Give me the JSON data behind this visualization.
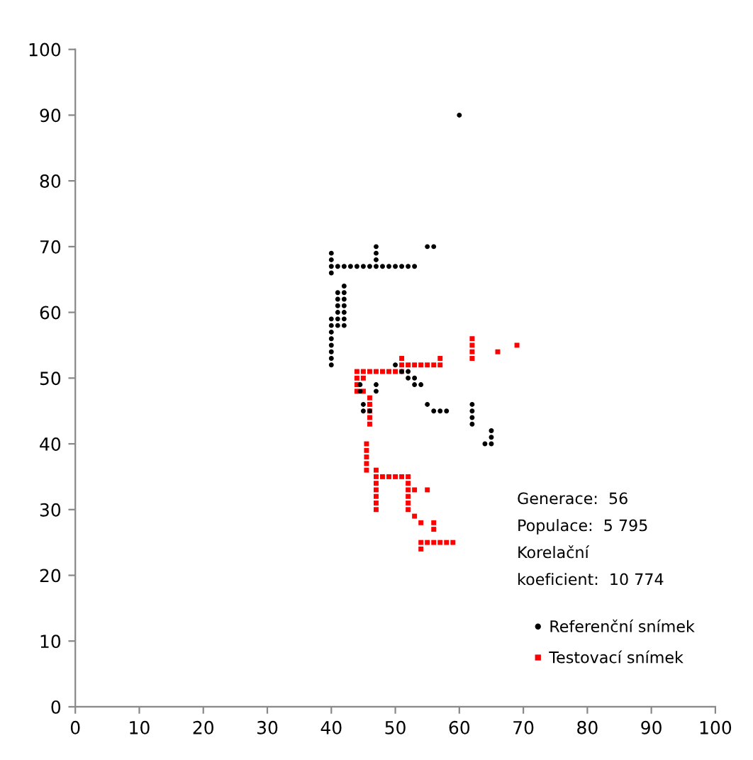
{
  "chart_data": {
    "type": "scatter",
    "xlim": [
      0,
      100
    ],
    "ylim": [
      0,
      100
    ],
    "xticks": [
      0,
      10,
      20,
      30,
      40,
      50,
      60,
      70,
      80,
      90,
      100
    ],
    "yticks": [
      0,
      10,
      20,
      30,
      40,
      50,
      60,
      70,
      80,
      90,
      100
    ],
    "grid": false,
    "legend": "bottom right",
    "annotations": [
      "Generace:  56",
      "Populace:  5 795",
      "Korelační",
      "koeficient:  10 774"
    ],
    "series": [
      {
        "name": "Referenční snímek",
        "color": "#000000",
        "marker": "circle",
        "x": [
          60,
          40,
          40,
          40,
          40,
          40,
          40,
          40,
          40,
          40,
          40,
          40,
          40,
          41,
          42,
          43,
          44,
          45,
          46,
          47,
          48,
          49,
          50,
          51,
          52,
          53,
          47,
          47,
          47,
          55,
          56,
          41,
          41,
          41,
          41,
          41,
          41,
          42,
          42,
          42,
          42,
          42,
          42,
          42,
          50,
          51,
          52,
          52,
          53,
          53,
          54,
          44.5,
          44.5,
          47,
          47,
          45,
          45,
          46,
          55,
          56,
          57,
          58,
          62,
          62,
          62,
          62,
          65,
          65,
          65,
          64
        ],
        "values": [
          90,
          52,
          53,
          54,
          55,
          56,
          57,
          58,
          59,
          66,
          67,
          68,
          69,
          67,
          67,
          67,
          67,
          67,
          67,
          67,
          67,
          67,
          67,
          67,
          67,
          67,
          68,
          69,
          70,
          70,
          70,
          58,
          59,
          60,
          61,
          62,
          63,
          58,
          59,
          60,
          61,
          62,
          63,
          64,
          52,
          51,
          51,
          50,
          50,
          49,
          49,
          49,
          48,
          49,
          48,
          46,
          45,
          45,
          46,
          45,
          45,
          45,
          43,
          44,
          45,
          46,
          42,
          41,
          40,
          40
        ]
      },
      {
        "name": "Testovací snímek",
        "color": "#ff0000",
        "marker": "square",
        "x": [
          44,
          45,
          46,
          47,
          48,
          49,
          50,
          51,
          44,
          44,
          44,
          45,
          45,
          46,
          46,
          46,
          46,
          46,
          51,
          51,
          52,
          53,
          54,
          55,
          56,
          57,
          57,
          62,
          62,
          62,
          62,
          66,
          69,
          45.5,
          45.5,
          45.5,
          45.5,
          45.5,
          47,
          47,
          47,
          47,
          47,
          47,
          47,
          48,
          49,
          50,
          51,
          52,
          52,
          52,
          52,
          52,
          53,
          55,
          52,
          53,
          54,
          56,
          56,
          55,
          56,
          57,
          58,
          59,
          54,
          54
        ],
        "values": [
          51,
          51,
          51,
          51,
          51,
          51,
          51,
          51,
          50,
          49,
          48,
          50,
          48,
          47,
          46,
          45,
          44,
          43,
          52,
          53,
          52,
          52,
          52,
          52,
          52,
          52,
          53,
          53,
          54,
          55,
          56,
          54,
          55,
          36,
          37,
          38,
          39,
          40,
          30,
          31,
          32,
          33,
          34,
          35,
          36,
          35,
          35,
          35,
          35,
          34,
          33,
          32,
          31,
          35,
          33,
          33,
          30,
          29,
          28,
          28,
          27,
          25,
          25,
          25,
          25,
          25,
          24,
          25
        ]
      }
    ]
  }
}
